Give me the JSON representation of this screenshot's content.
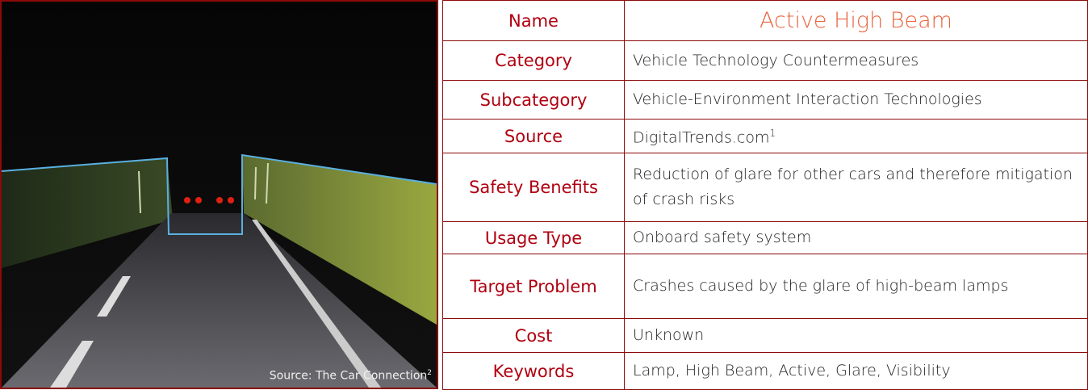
{
  "image": {
    "caption": "Source: The Car Connection",
    "caption_footnote": "2"
  },
  "table": {
    "rows": [
      [
        "Name",
        "Active High Beam"
      ],
      [
        "Category",
        "Vehicle Technology Countermeasures"
      ],
      [
        "Subcategory",
        "Vehicle-Environment Interaction Technologies"
      ],
      [
        "Source",
        "DigitalTrends.com"
      ],
      [
        "Safety Benefits",
        "Reduction of glare for other cars and therefore mitigation of crash risks"
      ],
      [
        "Usage Type",
        "Onboard safety system"
      ],
      [
        "Target Problem",
        "Crashes caused by the glare of high-beam lamps"
      ],
      [
        "Cost",
        "Unknown"
      ],
      [
        "Keywords",
        "Lamp, High Beam, Active, Glare, Visibility"
      ]
    ],
    "source_footnote": "1"
  }
}
